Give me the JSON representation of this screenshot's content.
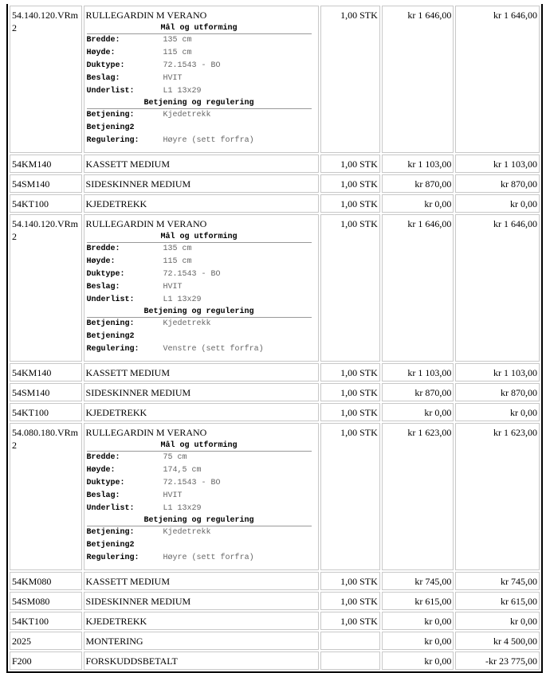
{
  "rows": [
    {
      "code": "54.140.120.VRm2",
      "desc": "RULLEGARDIN M VERANO",
      "qty": "1,00 STK",
      "price": "kr 1 646,00",
      "total": "kr 1 646,00",
      "specs": [
        {
          "heading": "Mål og utforming",
          "items": [
            {
              "label": "Bredde:",
              "value": "135 cm"
            },
            {
              "label": "Høyde:",
              "value": "115 cm"
            },
            {
              "label": "Duktype:",
              "value": "72.1543 - BO"
            },
            {
              "label": "Beslag:",
              "value": "HVIT"
            },
            {
              "label": "Underlist:",
              "value": "L1 13x29"
            }
          ]
        },
        {
          "heading": "Betjening og regulering",
          "items": [
            {
              "label": "Betjening:",
              "value": "Kjedetrekk"
            },
            {
              "label": "Betjening2",
              "value": ""
            },
            {
              "label": "Regulering:",
              "value": "Høyre (sett forfra)"
            }
          ]
        }
      ]
    },
    {
      "code": "54KM140",
      "desc": "KASSETT MEDIUM",
      "qty": "1,00 STK",
      "price": "kr 1 103,00",
      "total": "kr 1 103,00"
    },
    {
      "code": "54SM140",
      "desc": "SIDESKINNER MEDIUM",
      "qty": "1,00 STK",
      "price": "kr 870,00",
      "total": "kr 870,00"
    },
    {
      "code": "54KT100",
      "desc": "KJEDETREKK",
      "qty": "1,00 STK",
      "price": "kr 0,00",
      "total": "kr 0,00"
    },
    {
      "code": "54.140.120.VRm2",
      "desc": "RULLEGARDIN M VERANO",
      "qty": "1,00 STK",
      "price": "kr 1 646,00",
      "total": "kr 1 646,00",
      "specs": [
        {
          "heading": "Mål og utforming",
          "items": [
            {
              "label": "Bredde:",
              "value": "135 cm"
            },
            {
              "label": "Høyde:",
              "value": "115 cm"
            },
            {
              "label": "Duktype:",
              "value": "72.1543 - BO"
            },
            {
              "label": "Beslag:",
              "value": "HVIT"
            },
            {
              "label": "Underlist:",
              "value": "L1 13x29"
            }
          ]
        },
        {
          "heading": "Betjening og regulering",
          "items": [
            {
              "label": "Betjening:",
              "value": "Kjedetrekk"
            },
            {
              "label": "Betjening2",
              "value": ""
            },
            {
              "label": "Regulering:",
              "value": "Venstre (sett forfra)"
            }
          ]
        }
      ]
    },
    {
      "code": "54KM140",
      "desc": "KASSETT MEDIUM",
      "qty": "1,00 STK",
      "price": "kr 1 103,00",
      "total": "kr 1 103,00"
    },
    {
      "code": "54SM140",
      "desc": "SIDESKINNER MEDIUM",
      "qty": "1,00 STK",
      "price": "kr 870,00",
      "total": "kr 870,00"
    },
    {
      "code": "54KT100",
      "desc": "KJEDETREKK",
      "qty": "1,00 STK",
      "price": "kr 0,00",
      "total": "kr 0,00"
    },
    {
      "code": "54.080.180.VRm2",
      "desc": "RULLEGARDIN M VERANO",
      "qty": "1,00 STK",
      "price": "kr 1 623,00",
      "total": "kr 1 623,00",
      "specs": [
        {
          "heading": "Mål og utforming",
          "items": [
            {
              "label": "Bredde:",
              "value": "75 cm"
            },
            {
              "label": "Høyde:",
              "value": "174,5 cm"
            },
            {
              "label": "Duktype:",
              "value": "72.1543 - BO"
            },
            {
              "label": "Beslag:",
              "value": "HVIT"
            },
            {
              "label": "Underlist:",
              "value": "L1 13x29"
            }
          ]
        },
        {
          "heading": "Betjening og regulering",
          "items": [
            {
              "label": "Betjening:",
              "value": "Kjedetrekk"
            },
            {
              "label": "Betjening2",
              "value": ""
            },
            {
              "label": "Regulering:",
              "value": "Høyre (sett forfra)"
            }
          ]
        }
      ]
    },
    {
      "code": "54KM080",
      "desc": "KASSETT MEDIUM",
      "qty": "1,00 STK",
      "price": "kr 745,00",
      "total": "kr 745,00"
    },
    {
      "code": "54SM080",
      "desc": "SIDESKINNER MEDIUM",
      "qty": "1,00 STK",
      "price": "kr 615,00",
      "total": "kr 615,00"
    },
    {
      "code": "54KT100",
      "desc": "KJEDETREKK",
      "qty": "1,00 STK",
      "price": "kr 0,00",
      "total": "kr 0,00"
    },
    {
      "code": "2025",
      "desc": "MONTERING",
      "qty": "",
      "price": "kr 0,00",
      "total": "kr 4 500,00"
    },
    {
      "code": "F200",
      "desc": "FORSKUDDSBETALT",
      "qty": "",
      "price": "kr 0,00",
      "total": "-kr 23 775,00"
    }
  ]
}
